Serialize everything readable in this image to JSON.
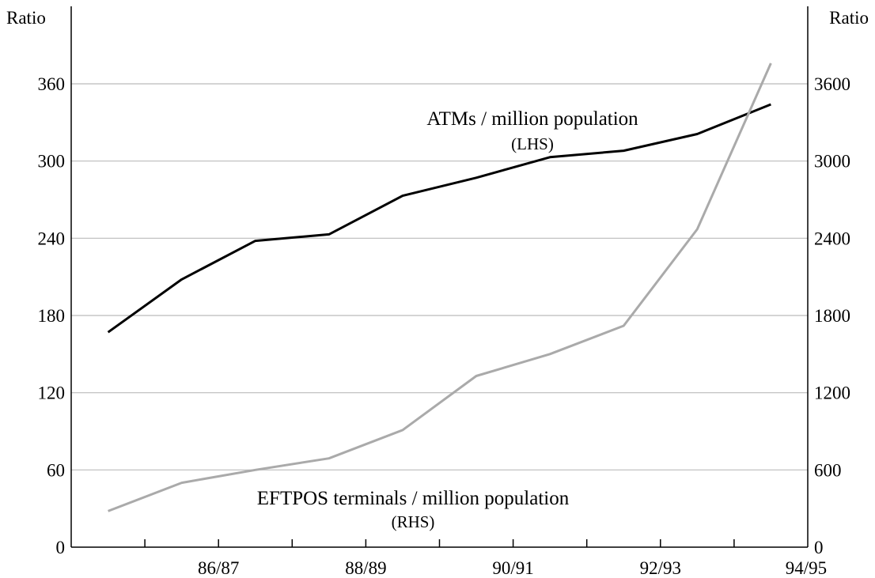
{
  "chart_data": {
    "type": "line",
    "x_tick_labels": [
      "86/87",
      "88/89",
      "90/91",
      "92/93",
      "94/95"
    ],
    "y_left": {
      "title": "Ratio",
      "ylim": [
        0,
        360
      ],
      "ticks": [
        0,
        60,
        120,
        180,
        240,
        300,
        360
      ]
    },
    "y_right": {
      "title": "Ratio",
      "ylim": [
        0,
        3600
      ],
      "ticks": [
        0,
        600,
        1200,
        1800,
        2400,
        3000,
        3600
      ]
    },
    "grid": true,
    "series": [
      {
        "name": "ATMs / million population",
        "axis_label": "(LHS)",
        "axis": "left",
        "color": "#000000",
        "values": [
          167,
          208,
          238,
          243,
          273,
          287,
          303,
          308,
          321,
          344
        ]
      },
      {
        "name": "EFTPOS terminals / million population",
        "axis_label": "(RHS)",
        "axis": "right",
        "color": "#aaaaaa",
        "values": [
          280,
          500,
          600,
          690,
          910,
          1330,
          1500,
          1720,
          2470,
          3760
        ]
      }
    ]
  }
}
